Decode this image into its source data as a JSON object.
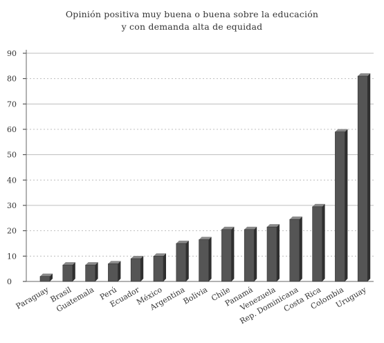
{
  "chart_data": {
    "type": "bar",
    "title": "Opinión positiva muy buena o buena sobre la educación",
    "subtitle": "y con demanda alta de equidad",
    "xlabel": "",
    "ylabel": "",
    "ylim": [
      0,
      90
    ],
    "yticks": [
      "0",
      "10",
      "20",
      "30",
      "40",
      "50",
      "60",
      "70",
      "80",
      "90"
    ],
    "categories": [
      "Paraguay",
      "Brasil",
      "Guatemala",
      "Perú",
      "Ecuador",
      "México",
      "Argentina",
      "Bolivia",
      "Chile",
      "Panamá",
      "Venezuela",
      "Rep. Dominicana",
      "Costa Rica",
      "Colombia",
      "Uruguay"
    ],
    "values": [
      2,
      6.5,
      6.5,
      7,
      9,
      10,
      15,
      16.5,
      20.5,
      20.5,
      21.5,
      24.5,
      29.5,
      59,
      81
    ],
    "grid": true,
    "legend": "none",
    "colors": {
      "bar": "#555555",
      "bar_side": "#2f2f2f",
      "bar_top": "#8a8a8a",
      "grid": "#bdbdbd"
    }
  }
}
